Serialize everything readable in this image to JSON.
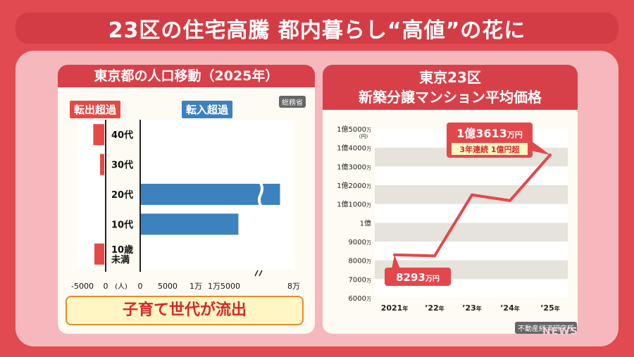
{
  "header": {
    "title": "23区の住宅高騰 都内暮らし“高値”の花に"
  },
  "left_panel": {
    "title": "東京都の人口移動（2025年）",
    "tag_out": "転出超過",
    "tag_in": "転入超過",
    "source": "総務省",
    "callout": "子育て世代が流出"
  },
  "right_panel": {
    "title_line1": "東京23区",
    "title_line2": "新築分譲マンション平均価格",
    "source": "不動産経済研究所"
  },
  "watermark": "NEWS",
  "chart_data": [
    {
      "type": "bar",
      "orientation": "horizontal",
      "title": "東京都の人口移動（2025年）",
      "categories": [
        "40代",
        "30代",
        "20代",
        "10代",
        "10歳\n未満"
      ],
      "category_lines": [
        [
          "40代"
        ],
        [
          "30代"
        ],
        [
          "20代"
        ],
        [
          "10代"
        ],
        [
          "10歳",
          "未満"
        ]
      ],
      "values": [
        -2200,
        -1000,
        71000,
        12000,
        -2000
      ],
      "out_axis": {
        "ticks": [
          "-5000",
          "0"
        ],
        "unit": "(人)",
        "range": [
          -5000,
          0
        ]
      },
      "in_axis": {
        "ticks": [
          "0",
          "5000",
          "1万",
          "1万5000",
          "8万"
        ],
        "range": [
          0,
          80000
        ],
        "axis_break": true
      },
      "bar_colors": {
        "out": "#e34a46",
        "in": "#3c82bf"
      }
    },
    {
      "type": "line",
      "title": "東京23区 新築分譲マンション平均価格",
      "x": [
        "2021年",
        "’22年",
        "’23年",
        "’24年",
        "’25年"
      ],
      "x_points": [
        0,
        1,
        2,
        3,
        4
      ],
      "x_tick_labels": [
        {
          "num": "2021",
          "unit": "年"
        },
        {
          "num": "’22",
          "unit": "年"
        },
        {
          "num": "’23",
          "unit": "年"
        },
        {
          "num": "’24",
          "unit": "年"
        },
        {
          "num": "’25",
          "unit": "年"
        }
      ],
      "values": [
        8293,
        8236,
        11483,
        11181,
        13613
      ],
      "y_unit": "万円",
      "ylim": [
        6000,
        15000
      ],
      "y_ticks": [
        {
          "value": 15000,
          "num": "1億5000",
          "unit": "万",
          "sub": "(円)"
        },
        {
          "value": 14000,
          "num": "1億4000",
          "unit": "万"
        },
        {
          "value": 13000,
          "num": "1億3000",
          "unit": "万"
        },
        {
          "value": 12000,
          "num": "1億2000",
          "unit": "万"
        },
        {
          "value": 11000,
          "num": "1億1000",
          "unit": "万"
        },
        {
          "value": 10000,
          "num": "1億",
          "unit": ""
        },
        {
          "value": 9000,
          "num": "9000",
          "unit": "万"
        },
        {
          "value": 8000,
          "num": "8000",
          "unit": "万"
        },
        {
          "value": 7000,
          "num": "7000",
          "unit": "万"
        },
        {
          "value": 6000,
          "num": "6000",
          "unit": "万"
        }
      ],
      "annotations": {
        "first": {
          "num": "8293",
          "unit": "万円"
        },
        "last": {
          "num": "1億3613",
          "unit": "万円",
          "note": "3年連続 1億円超"
        }
      },
      "line_color": "#e4474b",
      "grid": true,
      "grid_style": "alternating bands"
    }
  ]
}
